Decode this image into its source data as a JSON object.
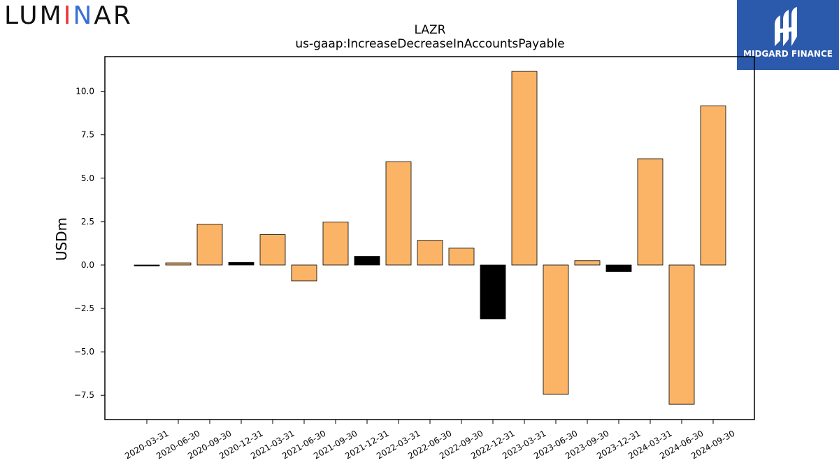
{
  "branding": {
    "left_logo": [
      "LUM",
      "I",
      "N",
      "AR"
    ],
    "left_logo_colors": [
      "#111111",
      "#e8333a",
      "#2aa84a",
      "#3a6fd8",
      "#111111"
    ],
    "right_logo_text": "MIDGARD FINANCE",
    "right_logo_bg": "#2b59ab"
  },
  "chart_data": {
    "type": "bar",
    "title": "LAZR",
    "subtitle": "us-gaap:IncreaseDecreaseInAccountsPayable",
    "xlabel": "",
    "ylabel": "USDm",
    "ylim": [
      -8.9,
      12.0
    ],
    "yticks": [
      -7.5,
      -5.0,
      -2.5,
      0.0,
      2.5,
      5.0,
      7.5,
      10.0
    ],
    "ytick_labels": [
      "−7.5",
      "−5.0",
      "−2.5",
      "0.0",
      "2.5",
      "5.0",
      "7.5",
      "10.0"
    ],
    "categories": [
      "2020-03-31",
      "2020-06-30",
      "2020-09-30",
      "2020-12-31",
      "2021-03-31",
      "2021-06-30",
      "2021-09-30",
      "2021-12-31",
      "2022-03-31",
      "2022-06-30",
      "2022-09-30",
      "2022-12-31",
      "2023-03-31",
      "2023-06-30",
      "2023-09-30",
      "2023-12-31",
      "2024-03-31",
      "2024-06-30",
      "2024-09-30"
    ],
    "values": [
      -0.05,
      0.12,
      2.35,
      0.15,
      1.75,
      -0.92,
      2.48,
      0.5,
      5.95,
      1.42,
      0.97,
      -3.1,
      11.15,
      -7.45,
      0.25,
      -0.38,
      6.12,
      -8.02,
      9.17
    ],
    "bar_colors": [
      "#000000",
      "#fbb466",
      "#fbb466",
      "#000000",
      "#fbb466",
      "#fbb466",
      "#fbb466",
      "#000000",
      "#fbb466",
      "#fbb466",
      "#fbb466",
      "#000000",
      "#fbb466",
      "#fbb466",
      "#fbb466",
      "#000000",
      "#fbb466",
      "#fbb466",
      "#fbb466"
    ],
    "grid": false,
    "legend": "none"
  }
}
